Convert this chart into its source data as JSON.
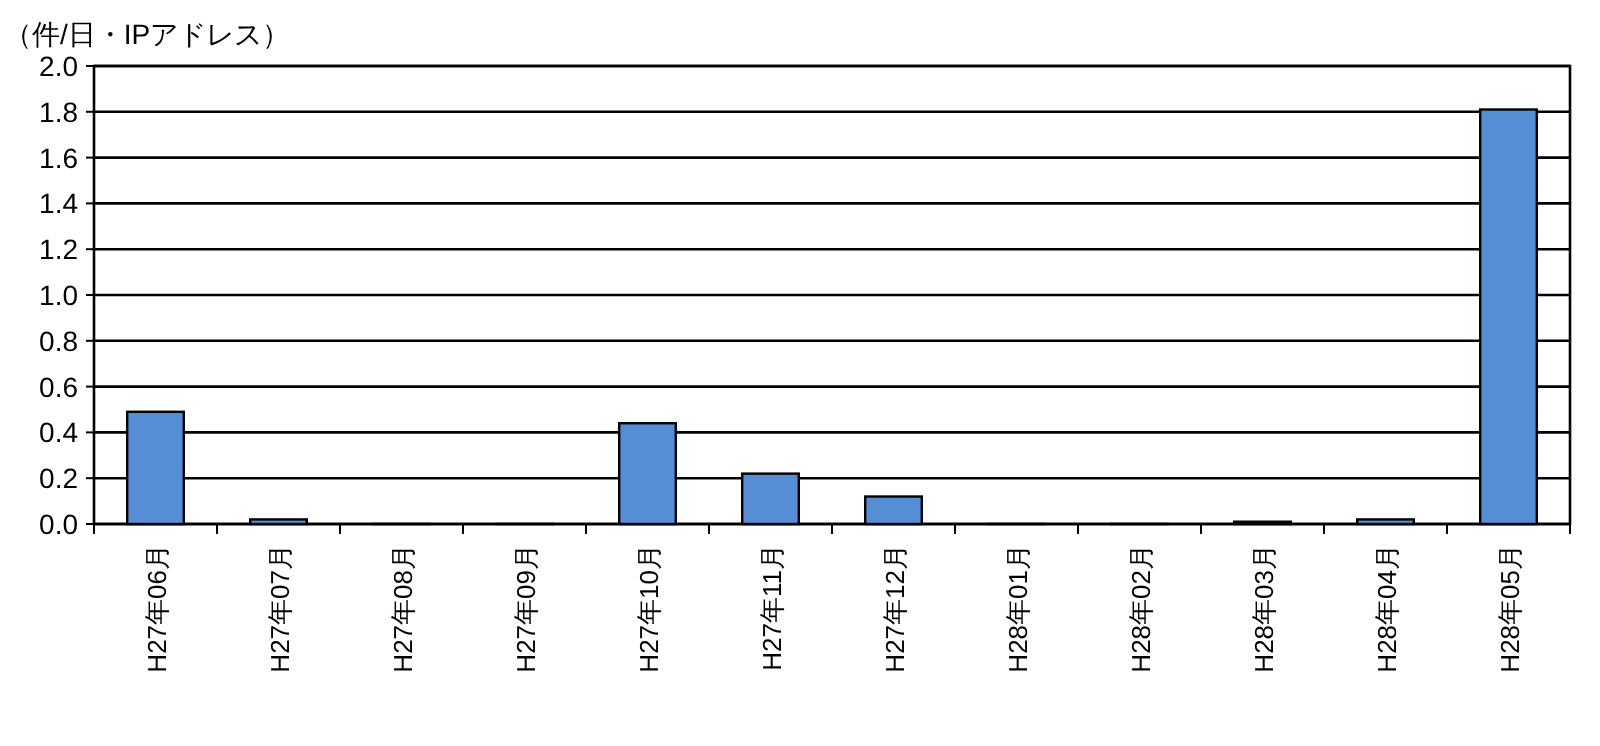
{
  "chart_data": {
    "type": "bar",
    "ylabel": "（件/日・IPアドレス）",
    "categories": [
      "H27年06月",
      "H27年07月",
      "H27年08月",
      "H27年09月",
      "H27年10月",
      "H27年11月",
      "H27年12月",
      "H28年01月",
      "H28年02月",
      "H28年03月",
      "H28年04月",
      "H28年05月"
    ],
    "values": [
      0.49,
      0.02,
      0,
      0,
      0.44,
      0.22,
      0.12,
      0,
      0,
      0.01,
      0.02,
      1.81
    ],
    "color": "#558ed5",
    "ylim": [
      0,
      2.0
    ],
    "yticks": [
      {
        "value": 0,
        "label": "0.0"
      },
      {
        "value": 0.2,
        "label": "0.2"
      },
      {
        "value": 0.4,
        "label": "0.4"
      },
      {
        "value": 0.6,
        "label": "0.6"
      },
      {
        "value": 0.8,
        "label": "0.8"
      },
      {
        "value": 1.0,
        "label": "1.0"
      },
      {
        "value": 1.2,
        "label": "1.2"
      },
      {
        "value": 1.4,
        "label": "1.4"
      },
      {
        "value": 1.6,
        "label": "1.6"
      },
      {
        "value": 1.8,
        "label": "1.8"
      },
      {
        "value": 2.0,
        "label": "2.0"
      }
    ],
    "grid": "y"
  }
}
